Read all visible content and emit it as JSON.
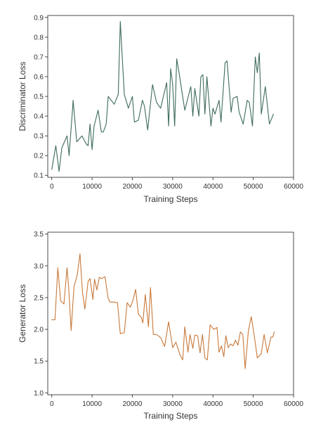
{
  "chart_data": [
    {
      "type": "line",
      "xlabel": "Training Steps",
      "ylabel": "Discriminator Loss",
      "xlim": [
        -1000,
        60000
      ],
      "ylim": [
        0.09,
        0.91
      ],
      "xticks": [
        "0",
        "10000",
        "20000",
        "30000",
        "40000",
        "50000",
        "60000"
      ],
      "xtick_values": [
        0,
        10000,
        20000,
        30000,
        40000,
        50000,
        60000
      ],
      "yticks": [
        "0.1",
        "0.2",
        "0.3",
        "0.4",
        "0.5",
        "0.6",
        "0.7",
        "0.8",
        "0.9"
      ],
      "ytick_values": [
        0.1,
        0.2,
        0.3,
        0.4,
        0.5,
        0.6,
        0.7,
        0.8,
        0.9
      ],
      "grid": false,
      "series": [
        {
          "color": "#3d6b5c",
          "x": [
            0,
            1000,
            1800,
            2500,
            3800,
            4300,
            5200,
            5300,
            6200,
            7500,
            8500,
            9000,
            9500,
            10000,
            10500,
            11500,
            12300,
            12800,
            13500,
            14000,
            15500,
            16500,
            17000,
            18000,
            19000,
            20000,
            20500,
            21500,
            22500,
            23000,
            23800,
            25000,
            26000,
            27000,
            28500,
            29000,
            29500,
            30000,
            30500,
            31000,
            31500,
            33000,
            33500,
            34500,
            35000,
            35500,
            36500,
            37000,
            37500,
            38000,
            38500,
            39500,
            40000,
            40500,
            41500,
            42000,
            43000,
            43500,
            44500,
            45000,
            46000,
            46500,
            47500,
            48500,
            49000,
            49800,
            50500,
            51000,
            51500,
            52000,
            53000,
            54000,
            55000
          ],
          "y": [
            0.13,
            0.25,
            0.12,
            0.24,
            0.3,
            0.2,
            0.45,
            0.48,
            0.27,
            0.3,
            0.26,
            0.25,
            0.36,
            0.23,
            0.35,
            0.43,
            0.32,
            0.32,
            0.36,
            0.5,
            0.46,
            0.51,
            0.88,
            0.51,
            0.44,
            0.5,
            0.37,
            0.38,
            0.48,
            0.45,
            0.33,
            0.56,
            0.47,
            0.44,
            0.57,
            0.35,
            0.64,
            0.56,
            0.35,
            0.69,
            0.63,
            0.43,
            0.47,
            0.55,
            0.4,
            0.54,
            0.4,
            0.6,
            0.61,
            0.41,
            0.6,
            0.35,
            0.44,
            0.41,
            0.48,
            0.37,
            0.67,
            0.68,
            0.42,
            0.49,
            0.5,
            0.42,
            0.36,
            0.48,
            0.47,
            0.35,
            0.7,
            0.62,
            0.72,
            0.41,
            0.55,
            0.36,
            0.41
          ]
        }
      ]
    },
    {
      "type": "line",
      "xlabel": "Training Steps",
      "ylabel": "Generator Loss",
      "xlim": [
        -1000,
        60000
      ],
      "ylim": [
        0.97,
        3.53
      ],
      "xticks": [
        "0",
        "10000",
        "20000",
        "30000",
        "40000",
        "50000",
        "60000"
      ],
      "xtick_values": [
        0,
        10000,
        20000,
        30000,
        40000,
        50000,
        60000
      ],
      "yticks": [
        "1.0",
        "1.5",
        "2.0",
        "2.5",
        "3.0",
        "3.5"
      ],
      "ytick_values": [
        1.0,
        1.5,
        2.0,
        2.5,
        3.0,
        3.5
      ],
      "grid": false,
      "series": [
        {
          "color": "#c8793a",
          "x": [
            0,
            800,
            1500,
            2200,
            3000,
            3800,
            4200,
            4800,
            5500,
            6300,
            7000,
            7600,
            8200,
            9000,
            9500,
            10200,
            10600,
            11200,
            11800,
            12400,
            13200,
            14000,
            14500,
            15500,
            16300,
            17000,
            18000,
            18700,
            19500,
            20100,
            20800,
            21500,
            22200,
            22600,
            23200,
            24000,
            24500,
            25200,
            26000,
            27000,
            28000,
            29000,
            30000,
            30800,
            31800,
            32500,
            33000,
            33800,
            34300,
            35000,
            35500,
            36200,
            36800,
            37400,
            38000,
            38600,
            39300,
            40200,
            41000,
            41500,
            42100,
            42700,
            43200,
            43800,
            44400,
            45000,
            45600,
            46200,
            46800,
            47400,
            48000,
            48800,
            49500,
            50300,
            51000,
            52000,
            52700,
            53500,
            54400,
            54900,
            55200
          ],
          "y": [
            2.15,
            2.15,
            2.97,
            2.45,
            2.4,
            2.97,
            2.65,
            1.98,
            2.67,
            2.85,
            3.19,
            2.6,
            2.32,
            2.75,
            2.8,
            2.47,
            2.79,
            2.62,
            2.82,
            2.8,
            2.83,
            2.48,
            2.43,
            2.43,
            2.42,
            1.93,
            1.95,
            2.42,
            2.35,
            2.45,
            2.63,
            2.24,
            2.19,
            2.1,
            2.55,
            2.04,
            2.66,
            1.92,
            1.92,
            1.87,
            1.73,
            2.12,
            1.71,
            1.8,
            1.6,
            1.52,
            2.04,
            1.64,
            1.92,
            1.7,
            1.91,
            1.9,
            1.63,
            1.92,
            1.55,
            1.52,
            2.07,
            2.0,
            2.03,
            1.64,
            1.74,
            1.57,
            1.9,
            1.71,
            1.77,
            1.74,
            1.83,
            1.75,
            1.96,
            1.92,
            1.38,
            1.98,
            2.2,
            1.88,
            1.55,
            1.62,
            1.92,
            1.63,
            1.88,
            1.88,
            1.96
          ]
        }
      ]
    }
  ]
}
